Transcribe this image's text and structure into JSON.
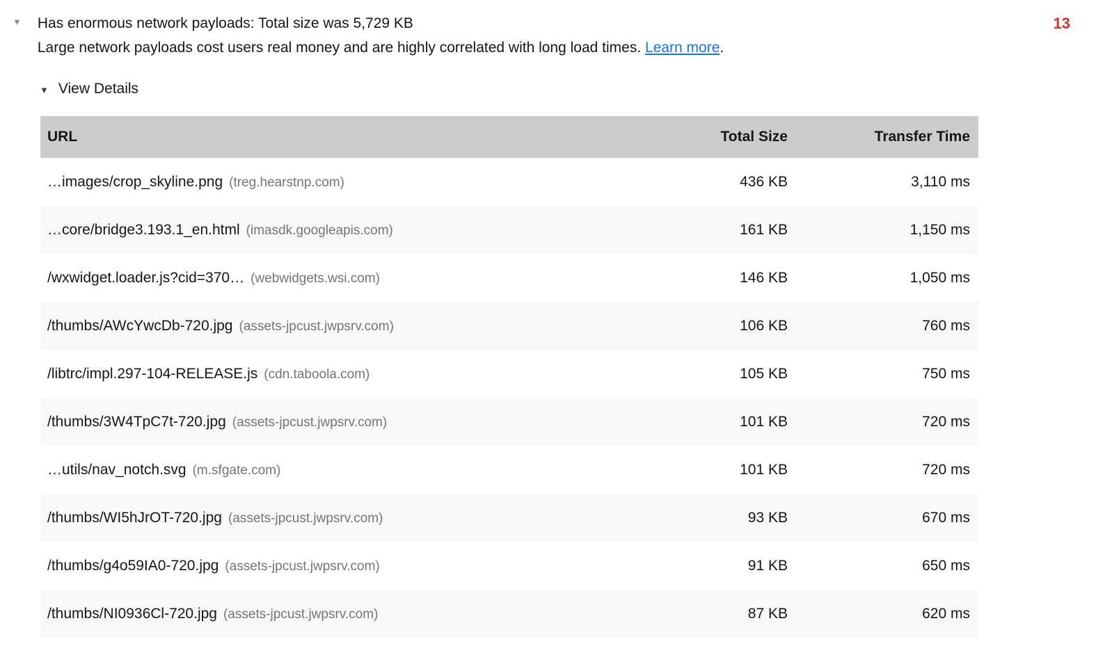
{
  "icons": {
    "collapse_glyph": "▼",
    "view_details_glyph": "▼"
  },
  "audit": {
    "title": "Has enormous network payloads: Total size was 5,729 KB",
    "score": "13",
    "description": "Large network payloads cost users real money and are highly correlated with long load times.",
    "learn_more_label": "Learn more",
    "trailing_period": ".",
    "view_details_label": "View Details"
  },
  "table": {
    "headers": {
      "url": "URL",
      "total_size": "Total Size",
      "transfer_time": "Transfer Time"
    },
    "rows": [
      {
        "url": "…images/crop_skyline.png",
        "domain": "(treg.hearstnp.com)",
        "total_size": "436 KB",
        "transfer_time": "3,110 ms"
      },
      {
        "url": "…core/bridge3.193.1_en.html",
        "domain": "(imasdk.googleapis.com)",
        "total_size": "161 KB",
        "transfer_time": "1,150 ms"
      },
      {
        "url": "/wxwidget.loader.js?cid=370…",
        "domain": "(webwidgets.wsi.com)",
        "total_size": "146 KB",
        "transfer_time": "1,050 ms"
      },
      {
        "url": "/thumbs/AWcYwcDb-720.jpg",
        "domain": "(assets-jpcust.jwpsrv.com)",
        "total_size": "106 KB",
        "transfer_time": "760 ms"
      },
      {
        "url": "/libtrc/impl.297-104-RELEASE.js",
        "domain": "(cdn.taboola.com)",
        "total_size": "105 KB",
        "transfer_time": "750 ms"
      },
      {
        "url": "/thumbs/3W4TpC7t-720.jpg",
        "domain": "(assets-jpcust.jwpsrv.com)",
        "total_size": "101 KB",
        "transfer_time": "720 ms"
      },
      {
        "url": "…utils/nav_notch.svg",
        "domain": "(m.sfgate.com)",
        "total_size": "101 KB",
        "transfer_time": "720 ms"
      },
      {
        "url": "/thumbs/WI5hJrOT-720.jpg",
        "domain": "(assets-jpcust.jwpsrv.com)",
        "total_size": "93 KB",
        "transfer_time": "670 ms"
      },
      {
        "url": "/thumbs/g4o59IA0-720.jpg",
        "domain": "(assets-jpcust.jwpsrv.com)",
        "total_size": "91 KB",
        "transfer_time": "650 ms"
      },
      {
        "url": "/thumbs/NI0936Cl-720.jpg",
        "domain": "(assets-jpcust.jwpsrv.com)",
        "total_size": "87 KB",
        "transfer_time": "620 ms"
      }
    ]
  },
  "colors": {
    "score_red": "#d93025",
    "link_blue": "#1a73e8",
    "header_bg": "#cccccc",
    "row_alt_bg": "#f8f8f8"
  }
}
